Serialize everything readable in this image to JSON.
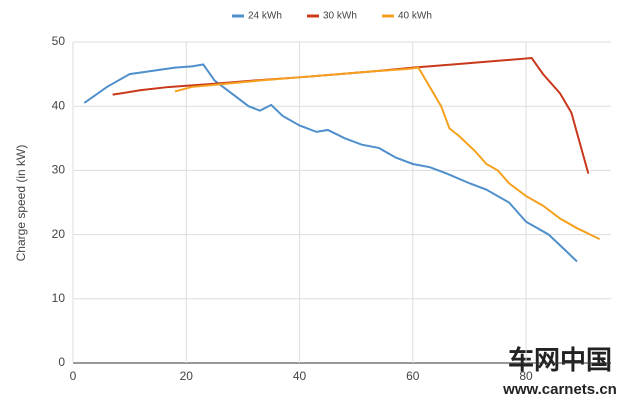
{
  "chart_data": {
    "type": "line",
    "y_label": "Charge speed (in kW)",
    "xlim": [
      0,
      95
    ],
    "xticks": [
      0,
      20,
      40,
      60,
      80
    ],
    "ylim": [
      0,
      50
    ],
    "yticks": [
      0,
      10,
      20,
      30,
      40,
      50
    ],
    "grid": true,
    "legend": "top",
    "series": [
      {
        "name": "24 kWh",
        "color": "#4f8fcb",
        "x": [
          2,
          6,
          10,
          14,
          18,
          21,
          23,
          25,
          28,
          31,
          33,
          35,
          37,
          40,
          43,
          45,
          48,
          51,
          54,
          57,
          60,
          63,
          66,
          70,
          73,
          77,
          80,
          84,
          87,
          89
        ],
        "values": [
          40.5,
          43,
          45,
          45.5,
          46,
          46.2,
          46.5,
          44,
          42,
          40,
          39.3,
          40.2,
          38.5,
          37,
          36,
          36.3,
          35,
          34,
          33.5,
          32,
          31,
          30.5,
          29.5,
          28,
          27,
          25,
          22,
          20,
          17.5,
          15.8
        ]
      },
      {
        "name": "30 kWh",
        "color": "#c8381a",
        "x": [
          7,
          12,
          17,
          25,
          32,
          40,
          47,
          54,
          60,
          67,
          74,
          81,
          83,
          86,
          88,
          91
        ],
        "values": [
          41.8,
          42.5,
          43,
          43.5,
          44,
          44.5,
          45,
          45.5,
          46,
          46.5,
          47,
          47.5,
          45,
          42,
          39,
          29.5
        ]
      },
      {
        "name": "40 kWh",
        "color": "#f5a11e",
        "x": [
          18,
          21,
          27,
          33,
          40,
          47,
          54,
          59,
          61,
          63,
          65,
          66.5,
          68,
          71,
          73,
          75,
          77,
          80,
          83,
          86,
          89,
          93
        ],
        "values": [
          42.3,
          43,
          43.5,
          44,
          44.5,
          45,
          45.5,
          45.8,
          46,
          43,
          40,
          36.5,
          35.5,
          33,
          31,
          30,
          28,
          26,
          24.5,
          22.5,
          21,
          19.3
        ]
      }
    ]
  },
  "watermark": {
    "title": "车网中国",
    "url": "www.carnets.cn"
  }
}
